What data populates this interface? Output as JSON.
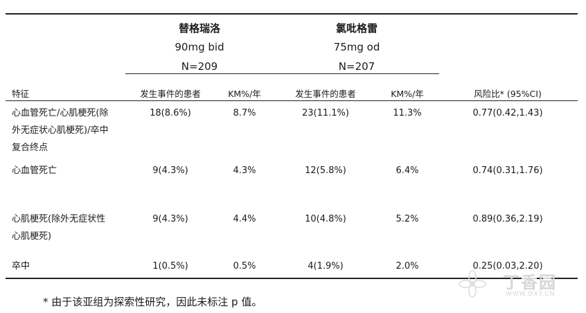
{
  "header": {
    "drug1": {
      "name": "替格瑞洛",
      "dose": "90mg bid",
      "n": "N=209"
    },
    "drug2": {
      "name": "氯吡格雷",
      "dose": "75mg od",
      "n": "N=207"
    }
  },
  "columns": {
    "feature": "特征",
    "events1": "发生事件的患者",
    "km1": "KM%/年",
    "events2": "发生事件的患者",
    "km2": "KM%/年",
    "hr": "风险比* (95%CI)"
  },
  "rows": [
    {
      "label": "心血管死亡/心肌梗死(除外无症状心肌梗死)/卒中复合终点",
      "events1": "18(8.6%)",
      "km1": "8.7%",
      "events2": "23(11.1%)",
      "km2": "11.3%",
      "hr": "0.77(0.42,1.43)"
    },
    {
      "label": "心血管死亡",
      "events1": "9(4.3%)",
      "km1": "4.3%",
      "events2": "12(5.8%)",
      "km2": "6.4%",
      "hr": "0.74(0.31,1.76)"
    },
    {
      "label": "心肌梗死(除外无症状性心肌梗死)",
      "events1": "9(4.3%)",
      "km1": "4.4%",
      "events2": "10(4.8%)",
      "km2": "5.2%",
      "hr": "0.89(0.36,2.19)"
    },
    {
      "label": "卒中",
      "events1": "1(0.5%)",
      "km1": "0.5%",
      "events2": "4(1.9%)",
      "km2": "2.0%",
      "hr": "0.25(0.03,2.20)"
    }
  ],
  "footnote": "* 由于该亚组为探索性研究，因此未标注 p 值。",
  "watermark": {
    "text": "丁香园",
    "url": "WWW.DXY.CN"
  }
}
